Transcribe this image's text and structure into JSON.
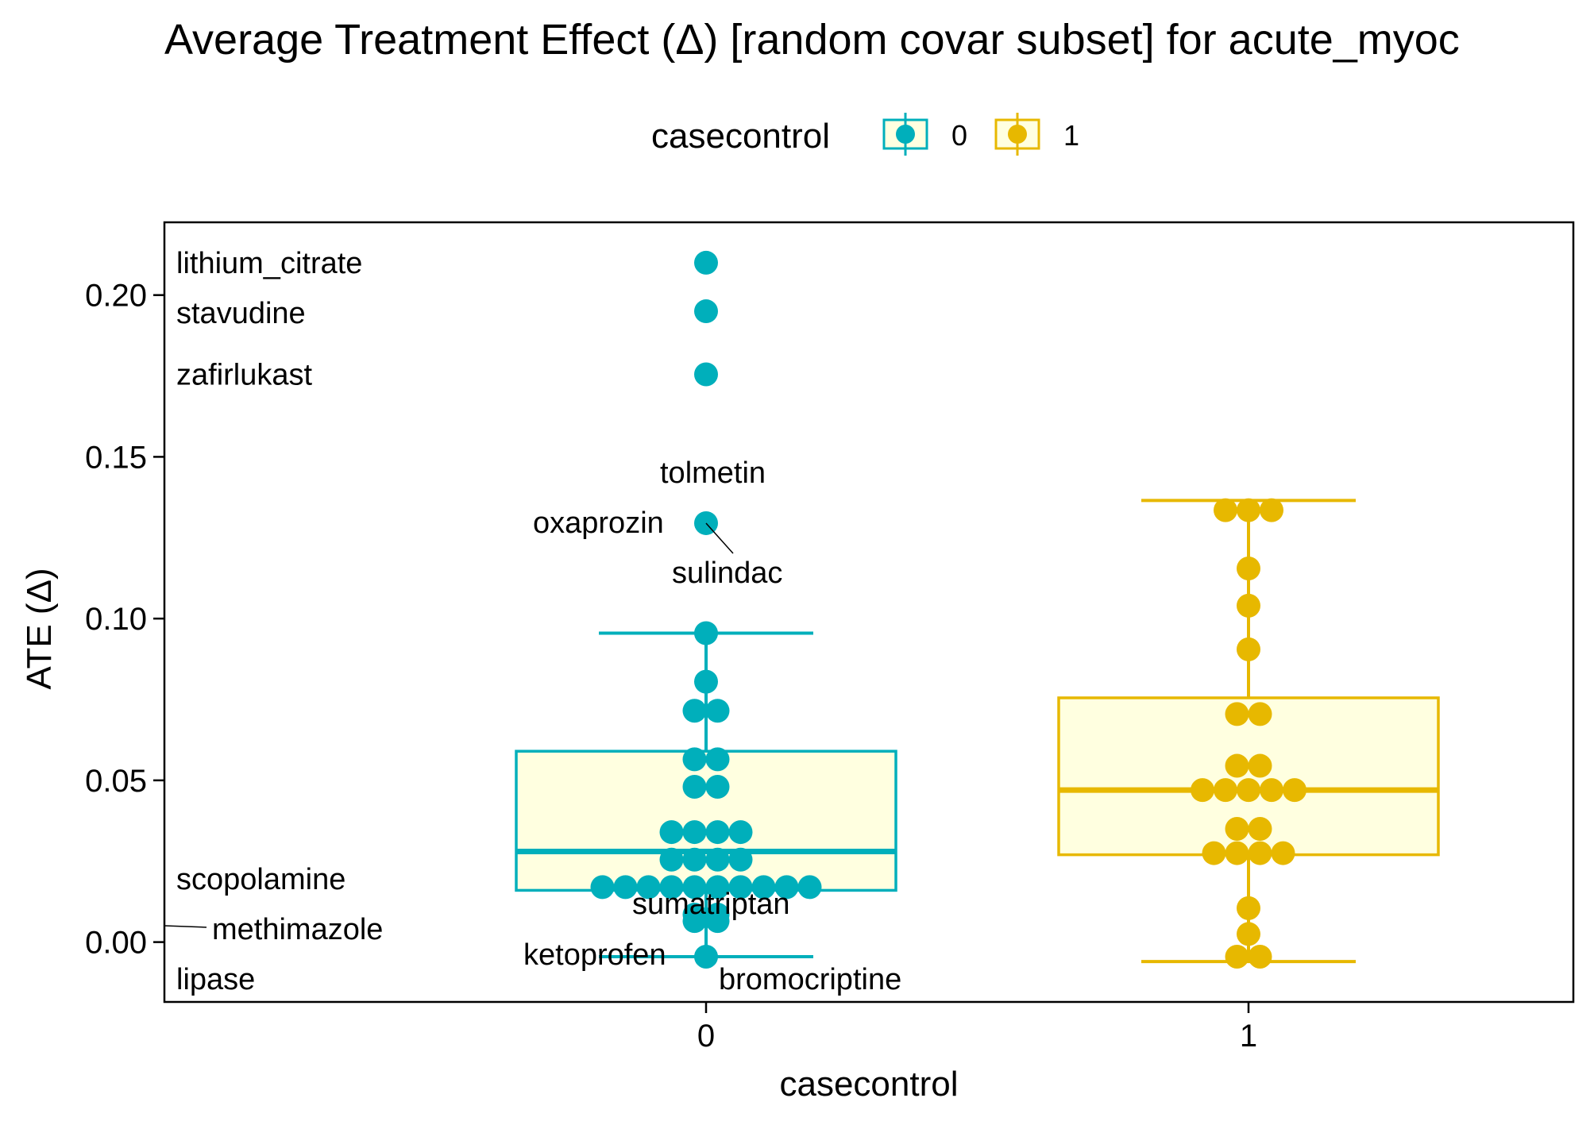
{
  "chart_data": {
    "type": "boxplot",
    "title": "Average Treatment Effect (Δ)  [random covar subset] for acute_myoc",
    "xlabel": "casecontrol",
    "ylabel": "ATE (Δ)",
    "categories": [
      "0",
      "1"
    ],
    "y_ticks": [
      "0.00",
      "0.05",
      "0.10",
      "0.15",
      "0.20"
    ],
    "y_tick_values": [
      0,
      0.05,
      0.1,
      0.15,
      0.2
    ],
    "ylim": [
      -0.0185,
      0.2225
    ],
    "grid": false,
    "legend": {
      "title": "casecontrol",
      "placement": "top",
      "entries": [
        {
          "label": "0",
          "color": "#00AFBB"
        },
        {
          "label": "1",
          "color": "#E7B800"
        }
      ]
    },
    "box_fill": "#FFFFE0",
    "series": [
      {
        "name": "0",
        "color": "#00AFBB",
        "box": {
          "whisker_low": -0.0045,
          "q1": 0.016,
          "median": 0.028,
          "q3": 0.059,
          "whisker_high": 0.0955
        },
        "points": [
          {
            "row": 0.21,
            "n": 1
          },
          {
            "row": 0.195,
            "n": 1
          },
          {
            "row": 0.1755,
            "n": 1
          },
          {
            "row": 0.1295,
            "n": 1
          },
          {
            "row": 0.0955,
            "n": 1
          },
          {
            "row": 0.0805,
            "n": 1
          },
          {
            "row": 0.0715,
            "n": 2
          },
          {
            "row": 0.0565,
            "n": 2
          },
          {
            "row": 0.048,
            "n": 2
          },
          {
            "row": 0.034,
            "n": 4
          },
          {
            "row": 0.0255,
            "n": 4
          },
          {
            "row": 0.017,
            "n": 10
          },
          {
            "row": 0.0085,
            "n": 2
          },
          {
            "row": 0.0065,
            "n": 2
          },
          {
            "row": -0.0045,
            "n": 1
          }
        ]
      },
      {
        "name": "1",
        "color": "#E7B800",
        "box": {
          "whisker_low": -0.006,
          "q1": 0.027,
          "median": 0.047,
          "q3": 0.0755,
          "whisker_high": 0.1365
        },
        "points": [
          {
            "row": 0.1335,
            "n": 3
          },
          {
            "row": 0.1155,
            "n": 1
          },
          {
            "row": 0.104,
            "n": 1
          },
          {
            "row": 0.0905,
            "n": 1
          },
          {
            "row": 0.0705,
            "n": 2
          },
          {
            "row": 0.0545,
            "n": 2
          },
          {
            "row": 0.047,
            "n": 5
          },
          {
            "row": 0.035,
            "n": 2
          },
          {
            "row": 0.0275,
            "n": 4
          },
          {
            "row": 0.0105,
            "n": 1
          },
          {
            "row": 0.0025,
            "n": 1
          },
          {
            "row": -0.0045,
            "n": 2
          }
        ]
      }
    ],
    "annotations": [
      {
        "text": "lithium_citrate",
        "x": 0,
        "y": 0.21
      },
      {
        "text": "stavudine",
        "x": 0,
        "y": 0.195
      },
      {
        "text": "zafirlukast",
        "x": 0,
        "y": 0.1755
      },
      {
        "text": "tolmetin",
        "x": 0,
        "y": 0.1295
      },
      {
        "text": "oxaprozin",
        "x": 0,
        "y": 0.1295
      },
      {
        "text": "sulindac",
        "x": 0,
        "y": 0.1295
      },
      {
        "text": "scopolamine",
        "x": 0,
        "y": 0.0065
      },
      {
        "text": "methimazole",
        "x": 0,
        "y": 0.0065
      },
      {
        "text": "sumatriptan",
        "x": 0,
        "y": 0.0085
      },
      {
        "text": "ketoprofen",
        "x": 0,
        "y": -0.0045
      },
      {
        "text": "lipase",
        "x": 0,
        "y": -0.0045
      },
      {
        "text": "bromocriptine",
        "x": 0,
        "y": -0.0045
      }
    ]
  }
}
